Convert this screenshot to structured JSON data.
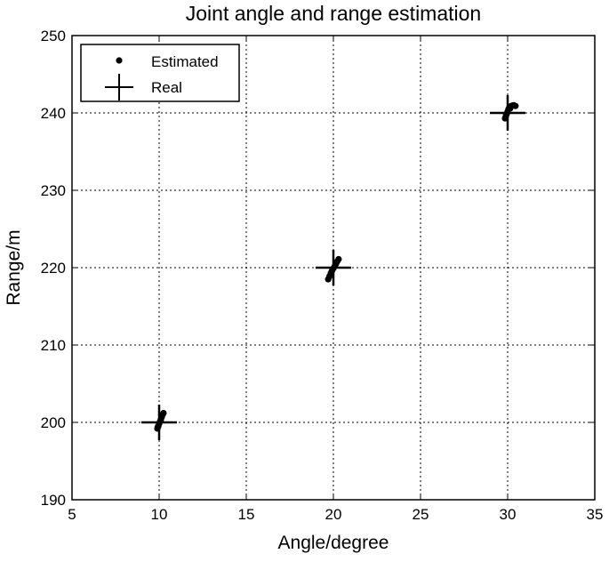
{
  "chart_data": {
    "type": "scatter",
    "title": "Joint angle and range estimation",
    "xlabel": "Angle/degree",
    "ylabel": "Range/m",
    "xlim": [
      5,
      35
    ],
    "ylim": [
      190,
      250
    ],
    "xticks": [
      5,
      10,
      15,
      20,
      25,
      30,
      35
    ],
    "yticks": [
      190,
      200,
      210,
      220,
      230,
      240,
      250
    ],
    "grid": true,
    "legend_position": "top-left",
    "series": [
      {
        "name": "Estimated",
        "marker": "dot",
        "color": "#000000",
        "points": [
          [
            9.9,
            199.2
          ],
          [
            9.95,
            199.5
          ],
          [
            10.0,
            199.8
          ],
          [
            10.05,
            200.1
          ],
          [
            10.1,
            200.4
          ],
          [
            10.15,
            200.7
          ],
          [
            10.2,
            201.0
          ],
          [
            10.25,
            201.2
          ],
          [
            9.92,
            199.4
          ],
          [
            10.08,
            200.2
          ],
          [
            19.7,
            218.5
          ],
          [
            19.78,
            218.9
          ],
          [
            19.85,
            219.3
          ],
          [
            19.92,
            219.6
          ],
          [
            20.0,
            219.9
          ],
          [
            20.08,
            220.2
          ],
          [
            20.15,
            220.5
          ],
          [
            20.22,
            220.8
          ],
          [
            20.3,
            221.1
          ],
          [
            19.95,
            219.8
          ],
          [
            29.85,
            239.3
          ],
          [
            29.9,
            239.6
          ],
          [
            29.95,
            239.9
          ],
          [
            30.0,
            240.2
          ],
          [
            30.05,
            240.5
          ],
          [
            30.1,
            240.7
          ],
          [
            30.2,
            240.9
          ],
          [
            30.35,
            241.0
          ],
          [
            30.45,
            240.9
          ],
          [
            29.92,
            239.8
          ],
          [
            30.15,
            240.6
          ],
          [
            30.28,
            240.95
          ]
        ]
      },
      {
        "name": "Real",
        "marker": "plus",
        "color": "#000000",
        "points": [
          [
            10,
            200
          ],
          [
            20,
            220
          ],
          [
            30,
            240
          ]
        ]
      }
    ]
  }
}
